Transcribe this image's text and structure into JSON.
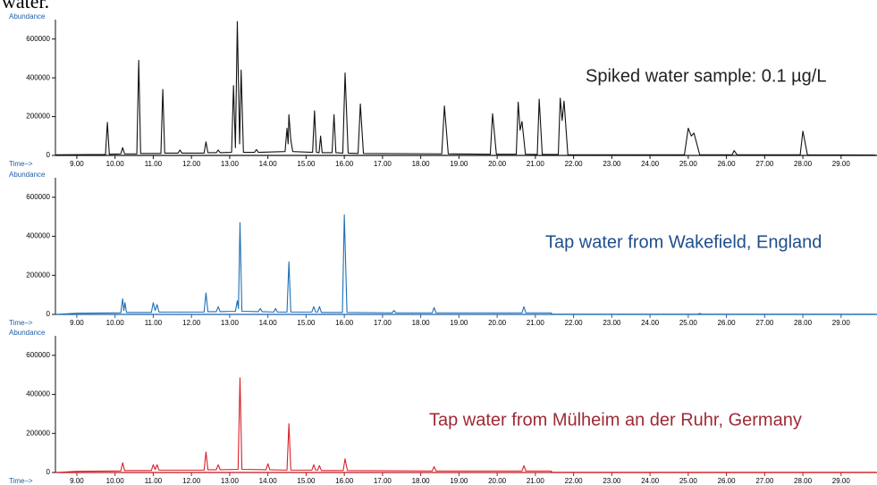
{
  "caption": "water.",
  "chart_data": [
    {
      "type": "line",
      "y_label": "Abundance",
      "x_label": "Time–>",
      "annotation": "Spiked water sample: 0.1 µg/L",
      "color": "#111111",
      "axis_color": "#111111",
      "annotation_color": "#222222",
      "xlim": [
        8.44,
        29.94
      ],
      "ylim": [
        0,
        700000
      ],
      "yticks": [
        0,
        200000,
        400000,
        600000
      ],
      "xticks": [
        {
          "value": 9,
          "label": "9.00"
        },
        {
          "value": 10,
          "label": "10.00"
        },
        {
          "value": 11,
          "label": "11.00"
        },
        {
          "value": 12,
          "label": "12.00"
        },
        {
          "value": 13,
          "label": "13.00"
        },
        {
          "value": 14,
          "label": "14.00"
        },
        {
          "value": 15,
          "label": "15.00"
        },
        {
          "value": 16,
          "label": "16.00"
        },
        {
          "value": 17,
          "label": "17.00"
        },
        {
          "value": 18,
          "label": "18.00"
        },
        {
          "value": 19,
          "label": "19.00"
        },
        {
          "value": 20,
          "label": "20.00"
        },
        {
          "value": 21,
          "label": "21.00"
        },
        {
          "value": 22,
          "label": "22.00"
        },
        {
          "value": 23,
          "label": "23.00"
        },
        {
          "value": 24,
          "label": "24.00"
        },
        {
          "value": 25,
          "label": "25.00"
        },
        {
          "value": 26,
          "label": "26.00"
        },
        {
          "value": 27,
          "label": "27.00"
        },
        {
          "value": 28,
          "label": "28.00"
        },
        {
          "value": 29,
          "label": "29.00"
        }
      ],
      "x": [
        8.45,
        9.75,
        9.8,
        9.85,
        10.15,
        10.2,
        10.25,
        10.57,
        10.62,
        10.67,
        11.2,
        11.25,
        11.3,
        11.65,
        11.7,
        11.75,
        12.33,
        12.38,
        12.43,
        12.65,
        12.7,
        12.75,
        13.05,
        13.1,
        13.15,
        13.2,
        13.26,
        13.3,
        13.36,
        13.65,
        13.7,
        13.75,
        14.45,
        14.5,
        14.53,
        14.55,
        14.6,
        14.65,
        15.17,
        15.22,
        15.27,
        15.34,
        15.38,
        15.42,
        15.68,
        15.73,
        15.78,
        15.96,
        16.02,
        16.1,
        16.36,
        16.42,
        16.5,
        18.55,
        18.62,
        18.72,
        19.82,
        19.88,
        19.98,
        20.5,
        20.55,
        20.6,
        20.65,
        20.74,
        21.05,
        21.1,
        21.18,
        21.6,
        21.65,
        21.7,
        21.75,
        21.85,
        24.9,
        25.0,
        25.08,
        25.15,
        25.3,
        26.15,
        26.2,
        26.28,
        27.93,
        28.0,
        28.12,
        29.9
      ],
      "values": [
        3000,
        5000,
        170000,
        6000,
        8000,
        40000,
        8000,
        8000,
        490000,
        10000,
        10000,
        340000,
        12000,
        12000,
        28000,
        12000,
        12000,
        70000,
        14000,
        14000,
        28000,
        14000,
        16000,
        360000,
        40000,
        690000,
        60000,
        440000,
        16000,
        16000,
        30000,
        16000,
        20000,
        140000,
        60000,
        210000,
        80000,
        20000,
        16000,
        230000,
        16000,
        14000,
        100000,
        14000,
        14000,
        210000,
        14000,
        12000,
        425000,
        12000,
        10000,
        265000,
        10000,
        8000,
        255000,
        8000,
        6000,
        215000,
        6000,
        6000,
        275000,
        130000,
        175000,
        6000,
        5000,
        290000,
        5000,
        5000,
        295000,
        180000,
        280000,
        4000,
        3000,
        140000,
        100000,
        115000,
        4000,
        3000,
        25000,
        3000,
        3000,
        125000,
        3000,
        2000
      ]
    },
    {
      "type": "line",
      "y_label": "Abundance",
      "x_label": "Time–>",
      "annotation": "Tap water from Wakefield, England",
      "color": "#1f6fb5",
      "axis_color": "#1f5fa8",
      "annotation_color": "#1f4e8c",
      "xlim": [
        8.44,
        29.94
      ],
      "ylim": [
        0,
        700000
      ],
      "yticks": [
        0,
        200000,
        400000,
        600000
      ],
      "xticks": [
        {
          "value": 9,
          "label": "9.00"
        },
        {
          "value": 10,
          "label": "10.00"
        },
        {
          "value": 11,
          "label": "11.00"
        },
        {
          "value": 12,
          "label": "12.00"
        },
        {
          "value": 13,
          "label": "13.00"
        },
        {
          "value": 14,
          "label": "14.00"
        },
        {
          "value": 15,
          "label": "15.00"
        },
        {
          "value": 16,
          "label": "16.00"
        },
        {
          "value": 17,
          "label": "17.00"
        },
        {
          "value": 18,
          "label": "18.00"
        },
        {
          "value": 19,
          "label": "19.00"
        },
        {
          "value": 20,
          "label": "20.00"
        },
        {
          "value": 21,
          "label": "21.00"
        },
        {
          "value": 22,
          "label": "22.00"
        },
        {
          "value": 23,
          "label": "23.00"
        },
        {
          "value": 24,
          "label": "24.00"
        },
        {
          "value": 25,
          "label": "25.00"
        },
        {
          "value": 26,
          "label": "26.00"
        },
        {
          "value": 27,
          "label": "27.00"
        },
        {
          "value": 28,
          "label": "28.00"
        },
        {
          "value": 29,
          "label": "29.00"
        }
      ],
      "x": [
        8.45,
        9.0,
        10.15,
        10.2,
        10.23,
        10.26,
        10.3,
        10.95,
        11.0,
        11.05,
        11.1,
        11.15,
        12.33,
        12.38,
        12.43,
        12.65,
        12.7,
        12.75,
        13.15,
        13.2,
        13.23,
        13.27,
        13.32,
        13.75,
        13.8,
        13.85,
        14.15,
        14.2,
        14.25,
        14.5,
        14.55,
        14.6,
        15.15,
        15.2,
        15.25,
        15.3,
        15.35,
        15.4,
        15.95,
        16.0,
        16.07,
        17.25,
        17.3,
        17.35,
        18.3,
        18.35,
        18.4,
        20.65,
        20.7,
        20.75,
        21.4,
        21.45,
        25.25,
        25.3,
        25.35,
        29.9
      ],
      "values": [
        0,
        6000,
        8000,
        80000,
        20000,
        60000,
        10000,
        10000,
        60000,
        20000,
        50000,
        12000,
        12000,
        110000,
        14000,
        14000,
        40000,
        14000,
        16000,
        70000,
        30000,
        470000,
        16000,
        14000,
        30000,
        14000,
        12000,
        30000,
        12000,
        12000,
        270000,
        12000,
        12000,
        40000,
        12000,
        12000,
        40000,
        10000,
        10000,
        510000,
        10000,
        8000,
        20000,
        8000,
        8000,
        35000,
        8000,
        8000,
        40000,
        8000,
        8000,
        1000,
        1000,
        5000,
        1000,
        1000
      ]
    },
    {
      "type": "line",
      "y_label": "Abundance",
      "x_label": "Time–>",
      "annotation": "Tap water from Mülheim an der Ruhr, Germany",
      "color": "#d8202a",
      "axis_color": "#c0141e",
      "annotation_color": "#9e2a35",
      "xlim": [
        8.44,
        29.94
      ],
      "ylim": [
        0,
        700000
      ],
      "yticks": [
        0,
        200000,
        400000,
        600000
      ],
      "xticks": [
        {
          "value": 9,
          "label": "9.00"
        },
        {
          "value": 10,
          "label": "10.00"
        },
        {
          "value": 11,
          "label": "11.00"
        },
        {
          "value": 12,
          "label": "12.00"
        },
        {
          "value": 13,
          "label": "13.00"
        },
        {
          "value": 14,
          "label": "14.00"
        },
        {
          "value": 15,
          "label": "15.00"
        },
        {
          "value": 16,
          "label": "16.00"
        },
        {
          "value": 17,
          "label": "17.00"
        },
        {
          "value": 18,
          "label": "18.00"
        },
        {
          "value": 19,
          "label": "19.00"
        },
        {
          "value": 20,
          "label": "20.00"
        },
        {
          "value": 21,
          "label": "21.00"
        },
        {
          "value": 22,
          "label": "22.00"
        },
        {
          "value": 23,
          "label": "23.00"
        },
        {
          "value": 24,
          "label": "24.00"
        },
        {
          "value": 25,
          "label": "25.00"
        },
        {
          "value": 26,
          "label": "26.00"
        },
        {
          "value": 27,
          "label": "27.00"
        },
        {
          "value": 28,
          "label": "28.00"
        },
        {
          "value": 29,
          "label": "29.00"
        }
      ],
      "x": [
        8.45,
        9.0,
        10.15,
        10.2,
        10.25,
        10.95,
        11.0,
        11.05,
        11.1,
        11.15,
        12.33,
        12.38,
        12.43,
        12.65,
        12.7,
        12.75,
        13.22,
        13.27,
        13.32,
        13.95,
        14.0,
        14.05,
        14.5,
        14.55,
        14.6,
        15.15,
        15.2,
        15.25,
        15.3,
        15.35,
        15.4,
        15.97,
        16.02,
        16.08,
        18.3,
        18.35,
        18.4,
        20.65,
        20.7,
        20.75,
        21.4,
        21.45,
        29.9
      ],
      "values": [
        0,
        6000,
        8000,
        50000,
        10000,
        10000,
        40000,
        15000,
        40000,
        12000,
        12000,
        105000,
        14000,
        14000,
        40000,
        14000,
        16000,
        485000,
        16000,
        14000,
        45000,
        14000,
        12000,
        250000,
        12000,
        12000,
        40000,
        12000,
        12000,
        35000,
        10000,
        10000,
        70000,
        10000,
        8000,
        30000,
        8000,
        8000,
        35000,
        8000,
        8000,
        1000,
        1000
      ]
    }
  ]
}
